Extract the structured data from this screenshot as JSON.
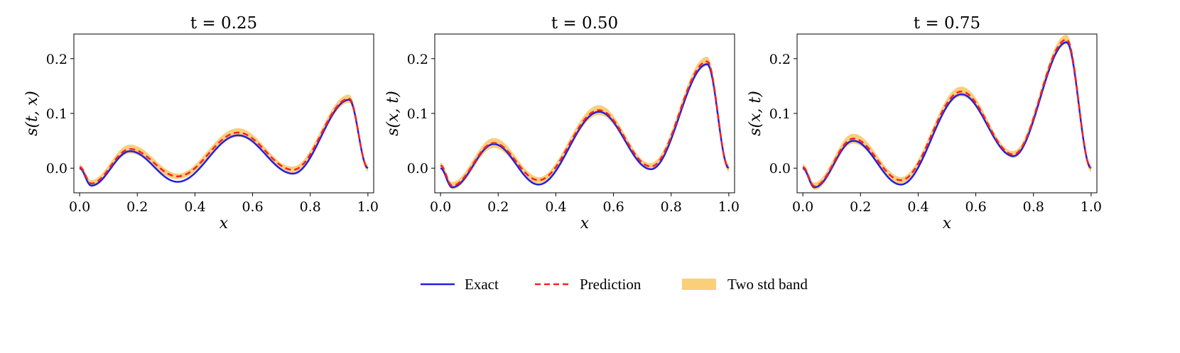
{
  "chart_data": [
    {
      "type": "line",
      "title": "t = 0.25",
      "xlabel": "x",
      "ylabel": "s(t, x)",
      "xlim": [
        -0.02,
        1.02
      ],
      "ylim": [
        -0.045,
        0.245
      ],
      "xticks": [
        "0.0",
        "0.2",
        "0.4",
        "0.6",
        "0.8",
        "1.0"
      ],
      "yticks": [
        "0.0",
        "0.1",
        "0.2"
      ],
      "x": [
        0,
        0.04,
        0.175,
        0.34,
        0.55,
        0.74,
        0.935,
        1.0
      ],
      "series": [
        {
          "name": "Exact",
          "values": [
            0.0,
            -0.032,
            0.031,
            -0.025,
            0.06,
            -0.01,
            0.125,
            0.0
          ]
        },
        {
          "name": "Prediction",
          "values": [
            0.002,
            -0.028,
            0.035,
            -0.015,
            0.065,
            -0.003,
            0.127,
            0.0
          ]
        }
      ],
      "band_halfwidth": 0.008
    },
    {
      "type": "line",
      "title": "t = 0.50",
      "xlabel": "x",
      "ylabel": "s(x, t)",
      "xlim": [
        -0.02,
        1.02
      ],
      "ylim": [
        -0.045,
        0.245
      ],
      "xticks": [
        "0.0",
        "0.2",
        "0.4",
        "0.6",
        "0.8",
        "1.0"
      ],
      "yticks": [
        "0.0",
        "0.1",
        "0.2"
      ],
      "x": [
        0,
        0.04,
        0.185,
        0.34,
        0.55,
        0.73,
        0.925,
        1.0
      ],
      "series": [
        {
          "name": "Exact",
          "values": [
            0.0,
            -0.035,
            0.044,
            -0.03,
            0.103,
            -0.002,
            0.19,
            0.0
          ]
        },
        {
          "name": "Prediction",
          "values": [
            0.005,
            -0.032,
            0.046,
            -0.022,
            0.106,
            0.003,
            0.195,
            0.0
          ]
        }
      ],
      "band_halfwidth": 0.009
    },
    {
      "type": "line",
      "title": "t = 0.75",
      "xlabel": "x",
      "ylabel": "s(x, t)",
      "xlim": [
        -0.02,
        1.02
      ],
      "ylim": [
        -0.045,
        0.245
      ],
      "xticks": [
        "0.0",
        "0.2",
        "0.4",
        "0.6",
        "0.8",
        "1.0"
      ],
      "yticks": [
        "0.0",
        "0.1",
        "0.2"
      ],
      "x": [
        0,
        0.04,
        0.175,
        0.34,
        0.55,
        0.73,
        0.915,
        1.0
      ],
      "series": [
        {
          "name": "Exact",
          "values": [
            0.0,
            -0.035,
            0.05,
            -0.03,
            0.135,
            0.022,
            0.23,
            0.0
          ]
        },
        {
          "name": "Prediction",
          "values": [
            0.002,
            -0.033,
            0.054,
            -0.022,
            0.14,
            0.025,
            0.235,
            0.0
          ]
        }
      ],
      "band_halfwidth": 0.009
    }
  ],
  "legend": [
    {
      "label": "Exact",
      "kind": "line",
      "color": "#1f1fe6"
    },
    {
      "label": "Prediction",
      "kind": "dashed",
      "color": "#ff1f1f"
    },
    {
      "label": "Two std band",
      "kind": "band",
      "color": "#f9cf7a"
    }
  ],
  "colors": {
    "exact": "#1f1fe6",
    "prediction": "#ff1f1f",
    "band": "#f9cf7a"
  }
}
